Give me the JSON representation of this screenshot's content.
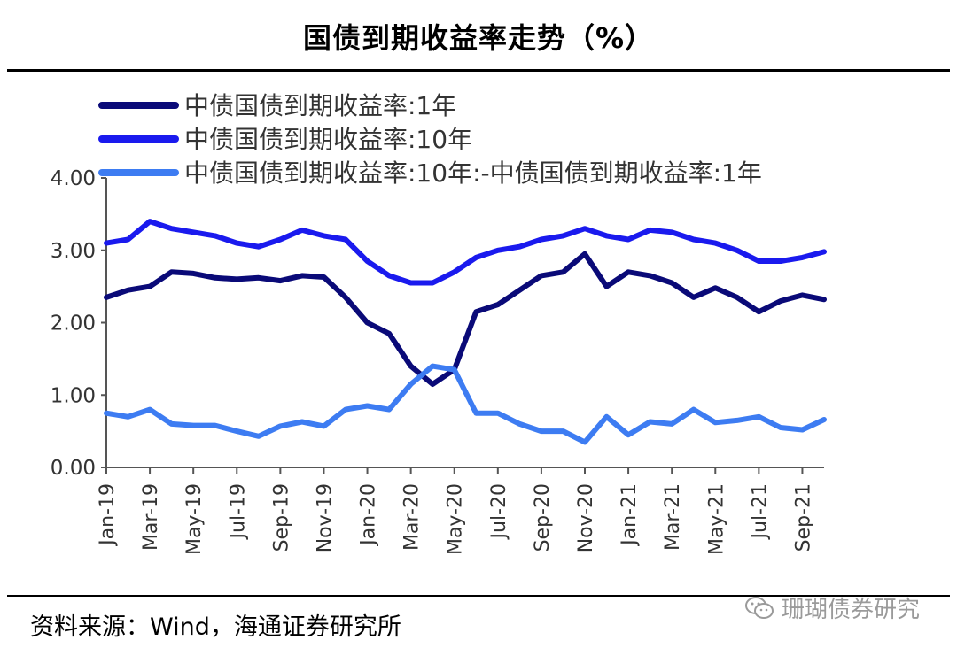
{
  "header": {
    "title": "国债到期收益率走势（%）"
  },
  "footer": {
    "source": "资料来源：Wind，海通证券研究所",
    "watermark": "珊瑚债券研究"
  },
  "colors": {
    "s1": "#0a0a78",
    "s2": "#1a1aee",
    "s3": "#3d7cf2",
    "axis": "#555555"
  },
  "chart_data": {
    "type": "line",
    "title": "国债到期收益率走势（%）",
    "xlabel": "",
    "ylabel": "",
    "ylim": [
      0,
      4
    ],
    "yticks": [
      "4.00",
      "3.00",
      "2.00",
      "1.00",
      "0.00"
    ],
    "xtick_labels": [
      "Jan-19",
      "Mar-19",
      "May-19",
      "Jul-19",
      "Sep-19",
      "Nov-19",
      "Jan-20",
      "Mar-20",
      "May-20",
      "Jul-20",
      "Sep-20",
      "Nov-20",
      "Jan-21",
      "Mar-21",
      "May-21",
      "Jul-21",
      "Sep-21"
    ],
    "x": [
      "2019-01",
      "2019-02",
      "2019-03",
      "2019-04",
      "2019-05",
      "2019-06",
      "2019-07",
      "2019-08",
      "2019-09",
      "2019-10",
      "2019-11",
      "2019-12",
      "2020-01",
      "2020-02",
      "2020-03",
      "2020-04",
      "2020-05",
      "2020-06",
      "2020-07",
      "2020-08",
      "2020-09",
      "2020-10",
      "2020-11",
      "2020-12",
      "2021-01",
      "2021-02",
      "2021-03",
      "2021-04",
      "2021-05",
      "2021-06",
      "2021-07",
      "2021-08",
      "2021-09",
      "2021-10"
    ],
    "series": [
      {
        "name": "中债国债到期收益率:1年",
        "values": [
          2.35,
          2.45,
          2.5,
          2.7,
          2.68,
          2.62,
          2.6,
          2.62,
          2.58,
          2.65,
          2.63,
          2.35,
          2.0,
          1.85,
          1.4,
          1.15,
          1.35,
          2.15,
          2.25,
          2.45,
          2.65,
          2.7,
          2.95,
          2.5,
          2.7,
          2.65,
          2.55,
          2.35,
          2.48,
          2.35,
          2.15,
          2.3,
          2.38,
          2.32
        ]
      },
      {
        "name": "中债国债到期收益率:10年",
        "values": [
          3.1,
          3.15,
          3.4,
          3.3,
          3.25,
          3.2,
          3.1,
          3.05,
          3.15,
          3.28,
          3.2,
          3.15,
          2.85,
          2.65,
          2.55,
          2.55,
          2.7,
          2.9,
          3.0,
          3.05,
          3.15,
          3.2,
          3.3,
          3.2,
          3.15,
          3.28,
          3.25,
          3.15,
          3.1,
          3.0,
          2.85,
          2.85,
          2.9,
          2.98
        ]
      },
      {
        "name": "中债国债到期收益率:10年:-中债国债到期收益率:1年",
        "values": [
          0.75,
          0.7,
          0.8,
          0.6,
          0.58,
          0.58,
          0.5,
          0.43,
          0.57,
          0.63,
          0.57,
          0.8,
          0.85,
          0.8,
          1.15,
          1.4,
          1.35,
          0.75,
          0.75,
          0.6,
          0.5,
          0.5,
          0.35,
          0.7,
          0.45,
          0.63,
          0.6,
          0.8,
          0.62,
          0.65,
          0.7,
          0.55,
          0.52,
          0.66
        ]
      }
    ],
    "legend_position": "top-left",
    "grid": false
  }
}
